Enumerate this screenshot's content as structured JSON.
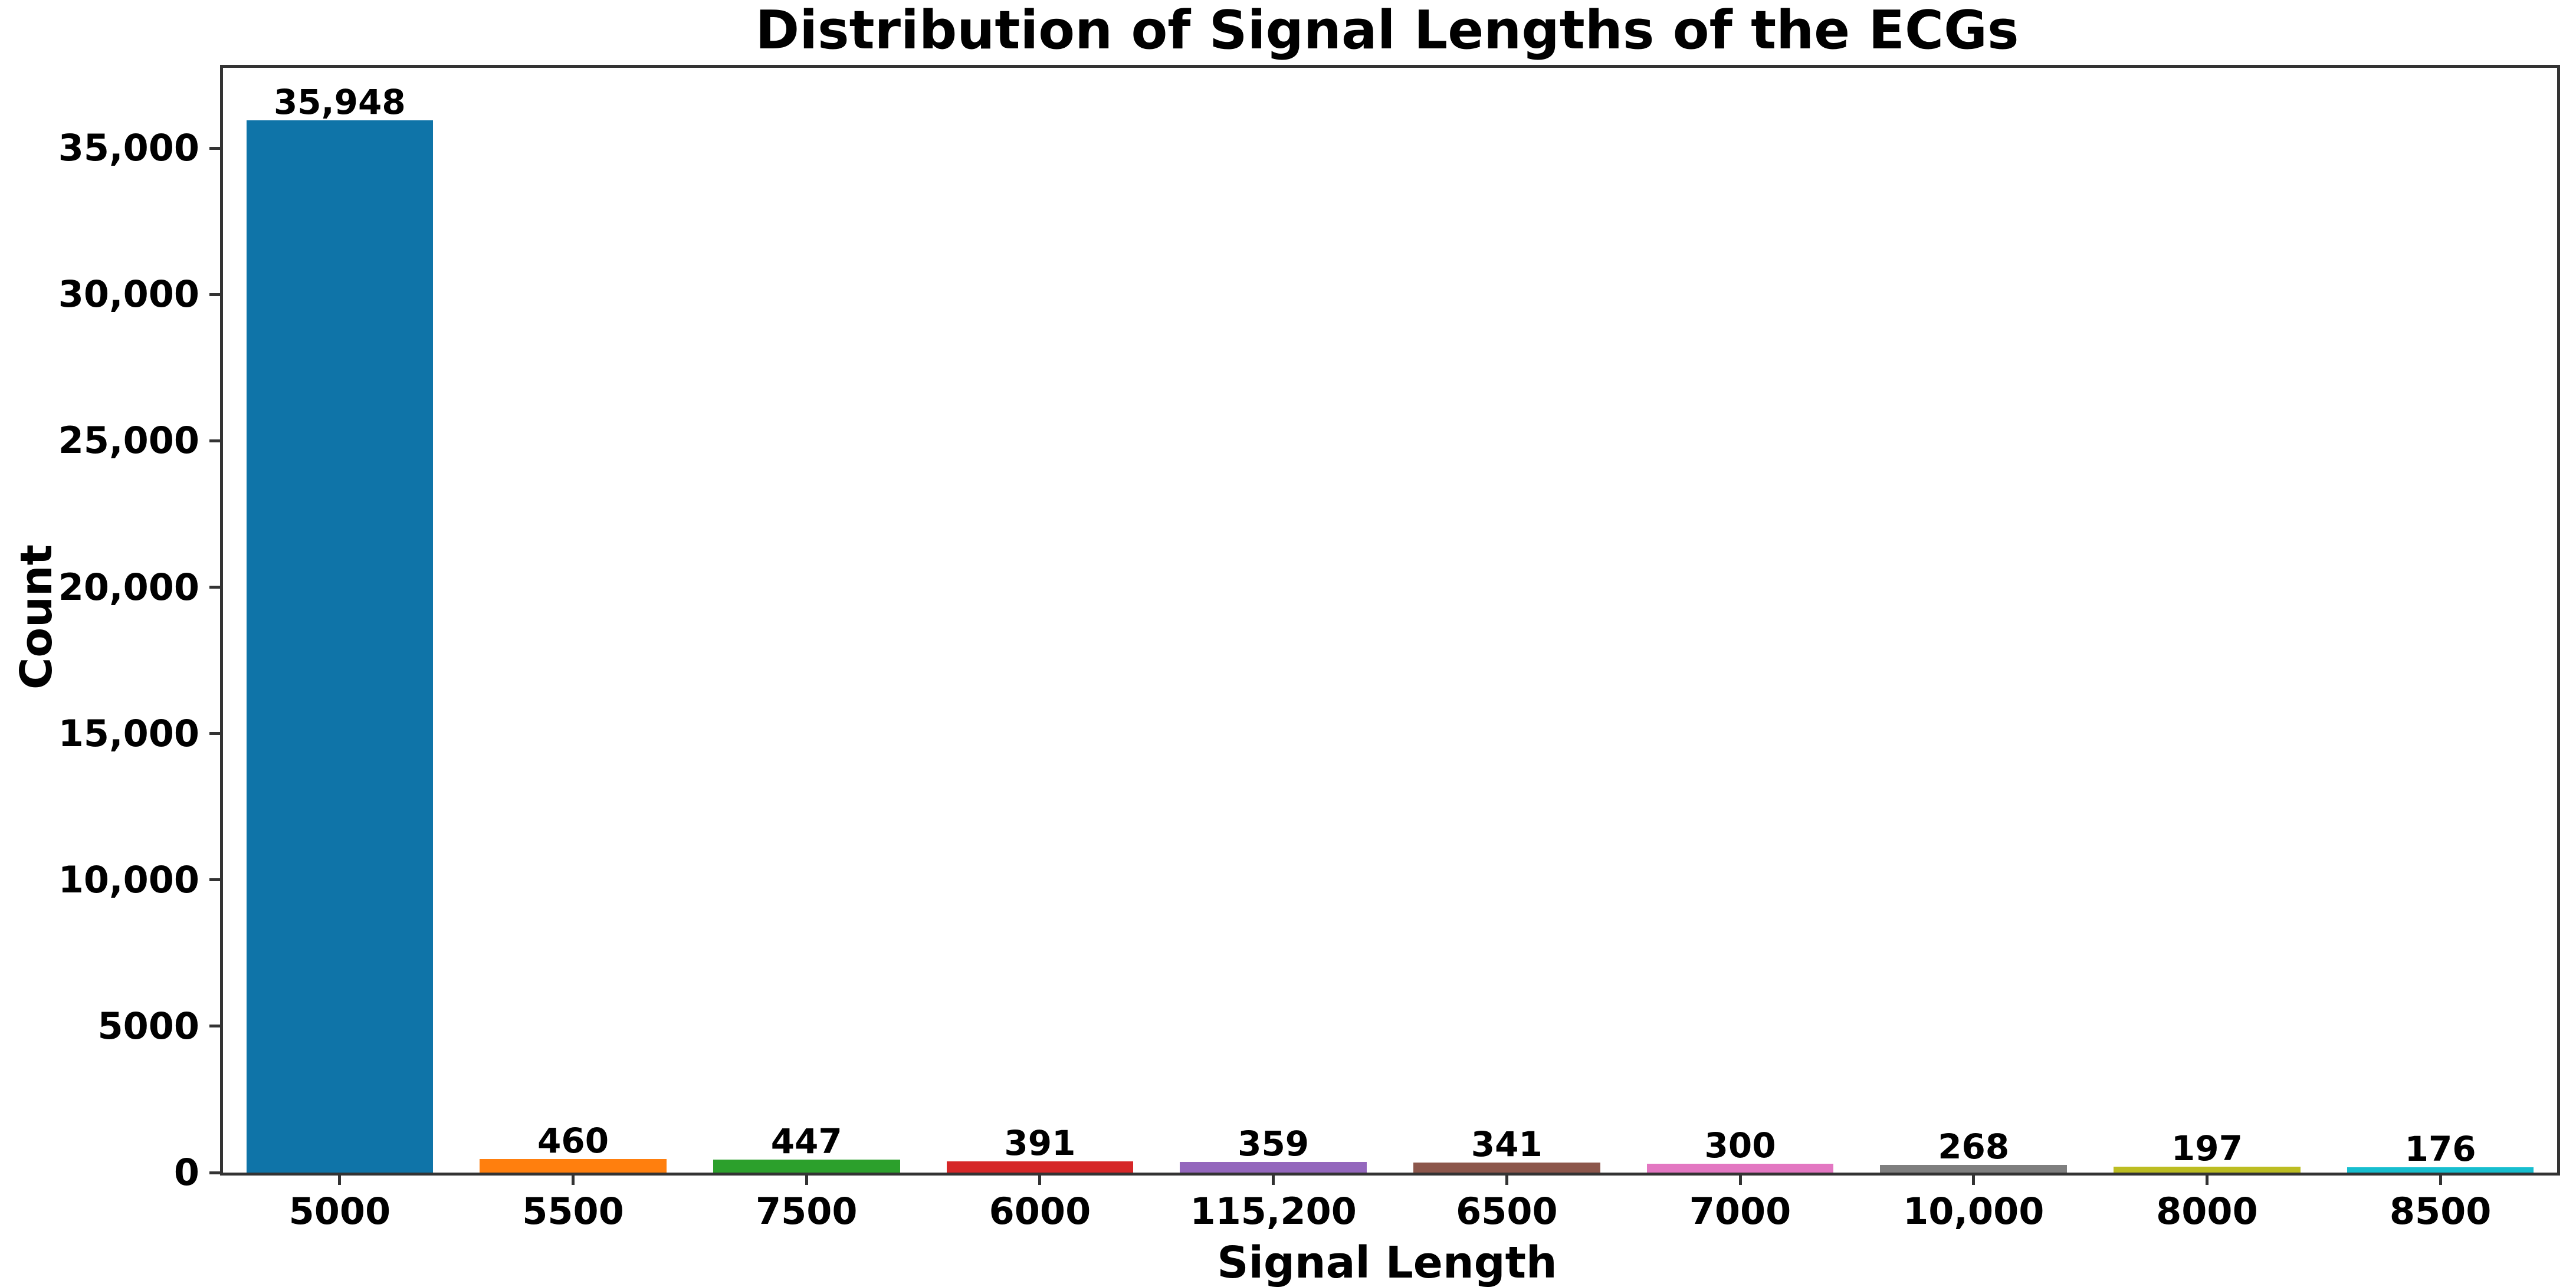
{
  "chart_data": {
    "type": "bar",
    "title": "Distribution of Signal Lengths of the ECGs",
    "xlabel": "Signal Length",
    "ylabel": "Count",
    "categories": [
      "5000",
      "5500",
      "7500",
      "6000",
      "115,200",
      "6500",
      "7000",
      "10,000",
      "8000",
      "8500"
    ],
    "values": [
      35948,
      460,
      447,
      391,
      359,
      341,
      300,
      268,
      197,
      176
    ],
    "bar_labels": [
      "35,948",
      "460",
      "447",
      "391",
      "359",
      "341",
      "300",
      "268",
      "197",
      "176"
    ],
    "bar_colors": [
      "#0f74a8",
      "#ff7f0e",
      "#2ca02c",
      "#d62728",
      "#9467bd",
      "#8c564b",
      "#e377c2",
      "#7f7f7f",
      "#bcbd22",
      "#17becf"
    ],
    "yticks": [
      {
        "value": 0,
        "label": "0"
      },
      {
        "value": 5000,
        "label": "5000"
      },
      {
        "value": 10000,
        "label": "10,000"
      },
      {
        "value": 15000,
        "label": "15,000"
      },
      {
        "value": 20000,
        "label": "20,000"
      },
      {
        "value": 25000,
        "label": "25,000"
      },
      {
        "value": 30000,
        "label": "30,000"
      },
      {
        "value": 35000,
        "label": "35,000"
      }
    ],
    "ylim": [
      0,
      37745
    ],
    "grid": false,
    "legend": null,
    "spine_color": "#333333",
    "text_color": "#000000",
    "background_color": "#ffffff"
  }
}
